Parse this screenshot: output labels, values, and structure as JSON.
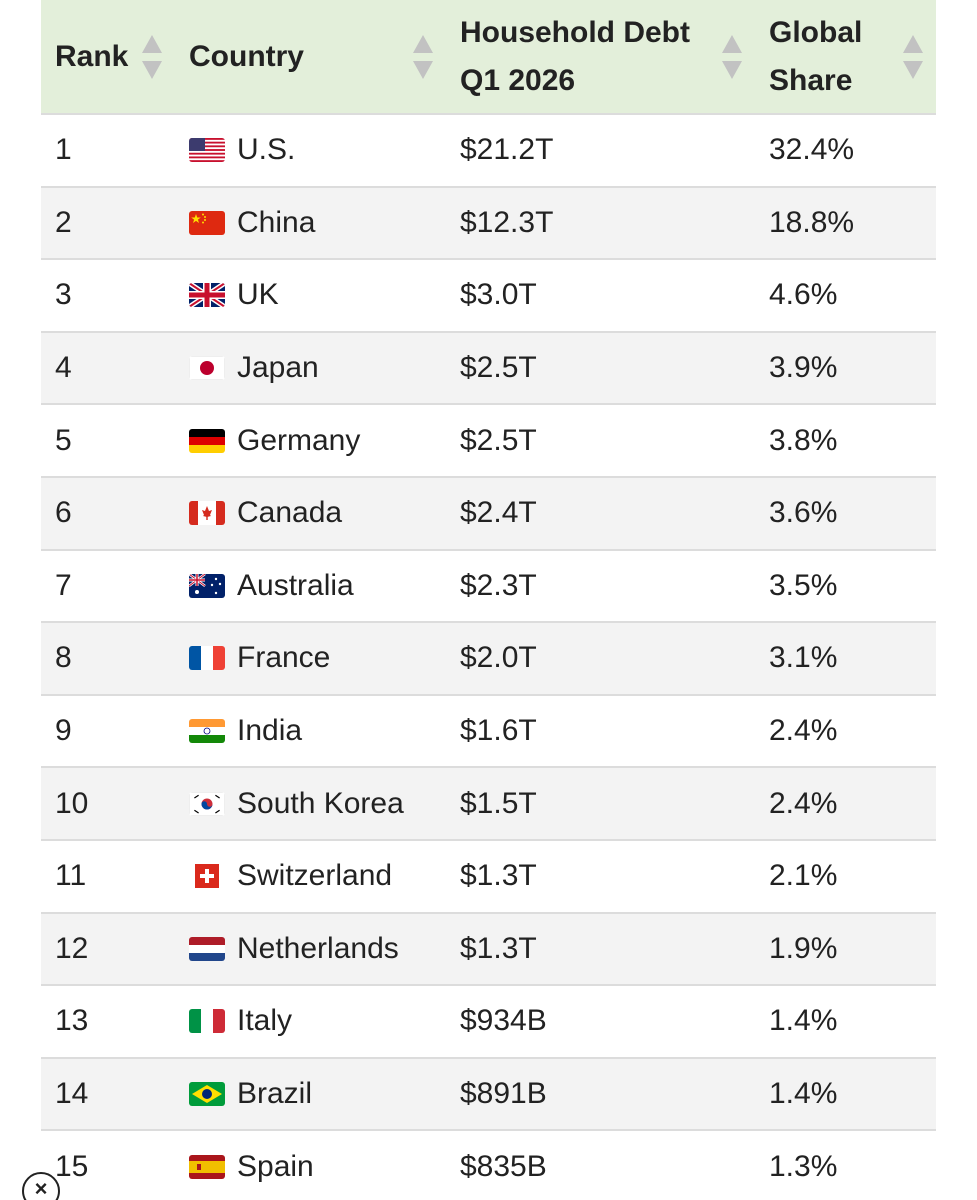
{
  "table": {
    "columns": [
      {
        "label": "Rank"
      },
      {
        "label": "Country"
      },
      {
        "label": "Household Debt\nQ1 2026"
      },
      {
        "label": "Global\nShare"
      }
    ],
    "rows": [
      {
        "rank": "1",
        "flag": "us-flag-icon",
        "country": "U.S.",
        "debt": "$21.2T",
        "share": "32.4%"
      },
      {
        "rank": "2",
        "flag": "china-flag-icon",
        "country": "China",
        "debt": "$12.3T",
        "share": "18.8%"
      },
      {
        "rank": "3",
        "flag": "uk-flag-icon",
        "country": "UK",
        "debt": "$3.0T",
        "share": "4.6%"
      },
      {
        "rank": "4",
        "flag": "japan-flag-icon",
        "country": "Japan",
        "debt": "$2.5T",
        "share": "3.9%"
      },
      {
        "rank": "5",
        "flag": "germany-flag-icon",
        "country": "Germany",
        "debt": "$2.5T",
        "share": "3.8%"
      },
      {
        "rank": "6",
        "flag": "canada-flag-icon",
        "country": "Canada",
        "debt": "$2.4T",
        "share": "3.6%"
      },
      {
        "rank": "7",
        "flag": "australia-flag-icon",
        "country": "Australia",
        "debt": "$2.3T",
        "share": "3.5%"
      },
      {
        "rank": "8",
        "flag": "france-flag-icon",
        "country": "France",
        "debt": "$2.0T",
        "share": "3.1%"
      },
      {
        "rank": "9",
        "flag": "india-flag-icon",
        "country": "India",
        "debt": "$1.6T",
        "share": "2.4%"
      },
      {
        "rank": "10",
        "flag": "south-korea-flag-icon",
        "country": "South Korea",
        "debt": "$1.5T",
        "share": "2.4%"
      },
      {
        "rank": "11",
        "flag": "switzerland-flag-icon",
        "country": "Switzerland",
        "debt": "$1.3T",
        "share": "2.1%"
      },
      {
        "rank": "12",
        "flag": "netherlands-flag-icon",
        "country": "Netherlands",
        "debt": "$1.3T",
        "share": "1.9%"
      },
      {
        "rank": "13",
        "flag": "italy-flag-icon",
        "country": "Italy",
        "debt": "$934B",
        "share": "1.4%"
      },
      {
        "rank": "14",
        "flag": "brazil-flag-icon",
        "country": "Brazil",
        "debt": "$891B",
        "share": "1.4%"
      },
      {
        "rank": "15",
        "flag": "spain-flag-icon",
        "country": "Spain",
        "debt": "$835B",
        "share": "1.3%"
      }
    ]
  },
  "close_button": {
    "icon": "close-icon",
    "glyph": "×"
  },
  "colors": {
    "header_bg": "#e3efda",
    "row_shade": "#f3f3f3",
    "sort_arrow": "#c2c2c2",
    "divider": "#dcdcdc"
  }
}
